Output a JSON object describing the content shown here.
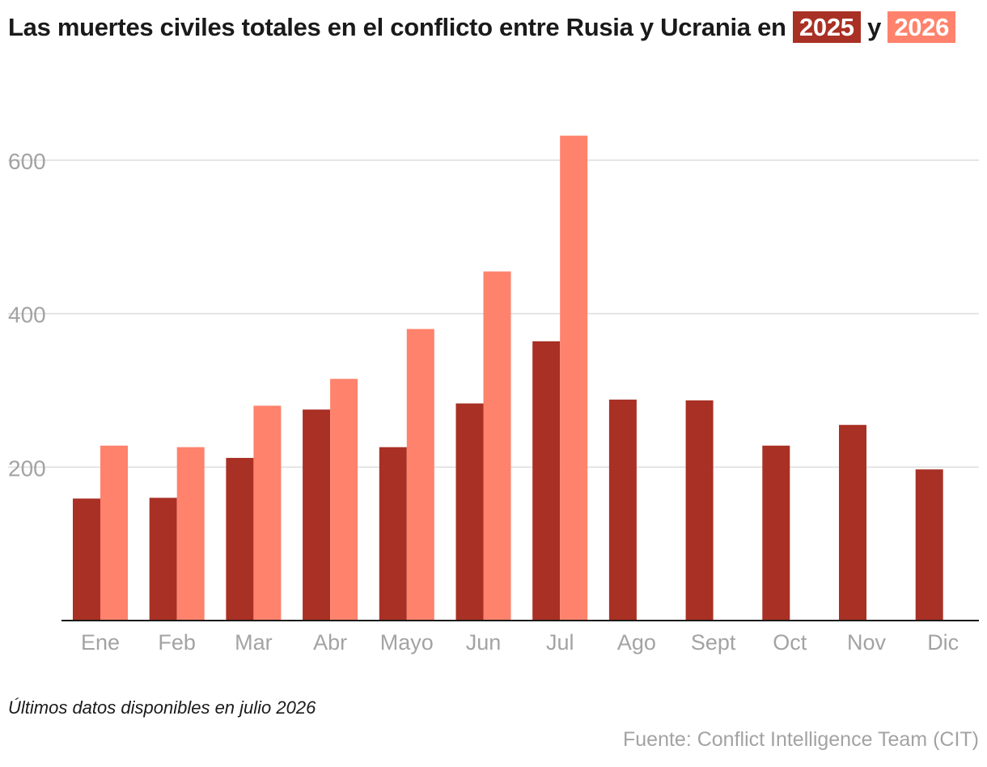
{
  "header": {
    "title_prefix": "Las muertes civiles totales en el conflicto entre Rusia y Ucrania en",
    "title_joiner": "y"
  },
  "legend": [
    {
      "label": "2025",
      "color": "#a93024"
    },
    {
      "label": "2026",
      "color": "#ff826c"
    }
  ],
  "footer": {
    "note": "Últimos datos disponibles en julio 2026",
    "source": "Fuente: Conflict Intelligence Team (CIT)"
  },
  "chart_data": {
    "type": "bar",
    "categories": [
      "Ene",
      "Feb",
      "Mar",
      "Abr",
      "Mayo",
      "Jun",
      "Jul",
      "Ago",
      "Sept",
      "Oct",
      "Nov",
      "Dic"
    ],
    "series": [
      {
        "name": "2025",
        "color": "#a93024",
        "values": [
          159,
          160,
          212,
          275,
          226,
          283,
          364,
          288,
          287,
          228,
          255,
          197
        ]
      },
      {
        "name": "2026",
        "color": "#ff826c",
        "values": [
          228,
          226,
          280,
          315,
          380,
          455,
          632,
          null,
          null,
          null,
          null,
          null
        ]
      }
    ],
    "yticks": [
      200,
      400,
      600
    ],
    "ylim": [
      0,
      640
    ],
    "grid": true,
    "legend_placement": "title"
  }
}
